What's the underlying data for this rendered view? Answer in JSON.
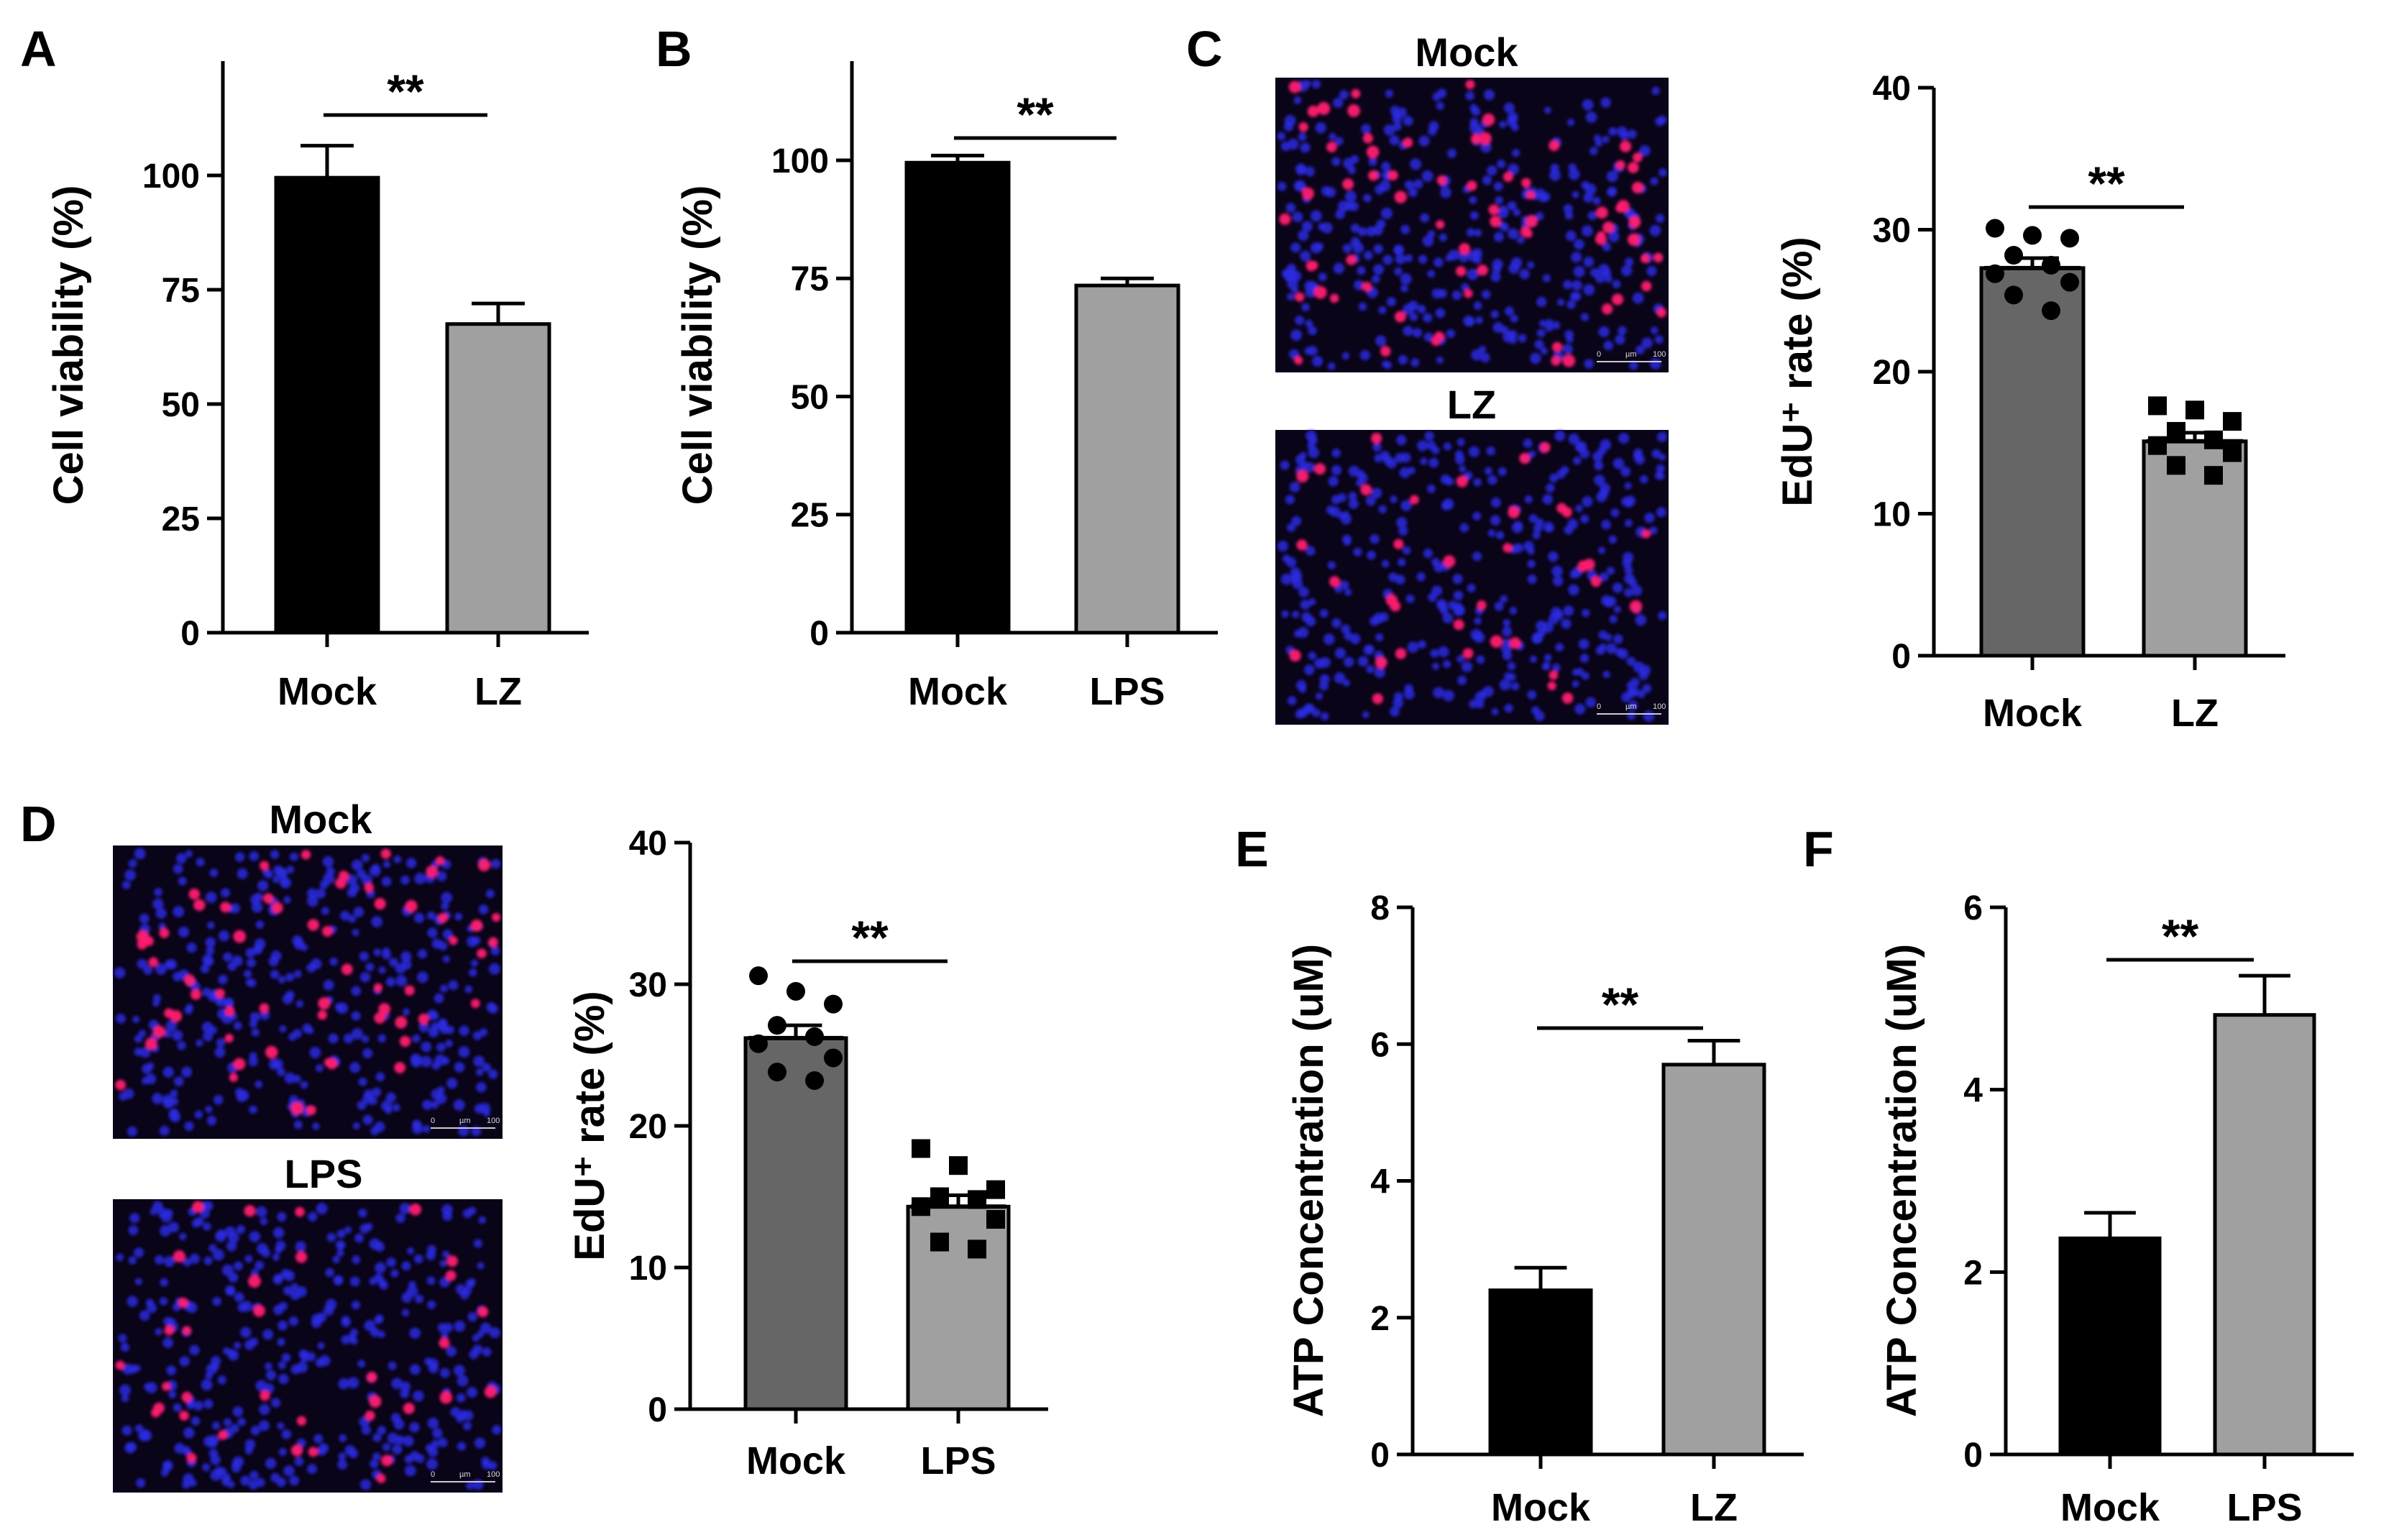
{
  "panels": {
    "A": "A",
    "B": "B",
    "C": "C",
    "D": "D",
    "E": "E",
    "F": "F"
  },
  "colors": {
    "black": "#000000",
    "dark_gray": "#666666",
    "light_gray": "#a0a0a0",
    "nucleus_blue": "#2a2ae0",
    "edu_red": "#ff2070"
  },
  "image_labels": {
    "C_top": "Mock",
    "C_bottom": "LZ",
    "D_top": "Mock",
    "D_bottom": "LPS",
    "scalebar": [
      "0",
      "µm",
      "100"
    ]
  },
  "chart_data": [
    {
      "id": "A",
      "type": "bar",
      "categories": [
        "Mock",
        "LZ"
      ],
      "values": [
        99.5,
        67.5
      ],
      "errors": [
        7,
        4.5
      ],
      "bar_colors": [
        "#000000",
        "#a0a0a0"
      ],
      "ylabel": "Cell viability (%)",
      "ylim": [
        0,
        125
      ],
      "yticks": [
        0,
        25,
        50,
        75,
        100
      ],
      "significance": "**"
    },
    {
      "id": "B",
      "type": "bar",
      "categories": [
        "Mock",
        "LPS"
      ],
      "values": [
        99.5,
        73.5
      ],
      "errors": [
        1.5,
        1.5
      ],
      "bar_colors": [
        "#000000",
        "#a0a0a0"
      ],
      "ylabel": "Cell viability (%)",
      "ylim": [
        0,
        121
      ],
      "yticks": [
        0,
        25,
        50,
        75,
        100
      ],
      "significance": "**"
    },
    {
      "id": "C",
      "type": "bar",
      "categories": [
        "Mock",
        "LZ"
      ],
      "values": [
        27.3,
        15.1
      ],
      "errors": [
        0.7,
        0.6
      ],
      "bar_colors": [
        "#666666",
        "#a0a0a0"
      ],
      "ylabel": "EdU⁺ rate (%)",
      "ylim": [
        0,
        40
      ],
      "yticks": [
        0,
        10,
        20,
        30,
        40
      ],
      "significance": "**",
      "points": [
        [
          30.1,
          29.6,
          29.4,
          28.2,
          27.5,
          26.9,
          26.3,
          25.4,
          24.3
        ],
        [
          17.6,
          17.3,
          16.5,
          15.8,
          15.2,
          14.8,
          14.3,
          13.4,
          12.7
        ]
      ]
    },
    {
      "id": "D",
      "type": "bar",
      "categories": [
        "Mock",
        "LPS"
      ],
      "values": [
        26.2,
        14.3
      ],
      "errors": [
        0.9,
        0.8
      ],
      "bar_colors": [
        "#666666",
        "#a0a0a0"
      ],
      "ylabel": "EdU⁺ rate (%)",
      "ylim": [
        0,
        40
      ],
      "yticks": [
        0,
        10,
        20,
        30,
        40
      ],
      "significance": "**",
      "points": [
        [
          30.6,
          29.5,
          28.6,
          27.1,
          26.3,
          25.8,
          24.8,
          23.8,
          23.2
        ],
        [
          18.4,
          17.2,
          15.5,
          15.0,
          14.8,
          14.3,
          13.4,
          11.8,
          11.3
        ]
      ]
    },
    {
      "id": "E",
      "type": "bar",
      "categories": [
        "Mock",
        "LZ"
      ],
      "values": [
        2.4,
        5.7
      ],
      "errors": [
        0.33,
        0.35
      ],
      "bar_colors": [
        "#000000",
        "#a0a0a0"
      ],
      "ylabel": "ATP Concentration (uM)",
      "ylim": [
        0,
        8
      ],
      "yticks": [
        0,
        2,
        4,
        6,
        8
      ],
      "significance": "**"
    },
    {
      "id": "F",
      "type": "bar",
      "categories": [
        "Mock",
        "LPS"
      ],
      "values": [
        2.37,
        4.82
      ],
      "errors": [
        0.28,
        0.43
      ],
      "bar_colors": [
        "#000000",
        "#a0a0a0"
      ],
      "ylabel": "ATP Concentration (uM)",
      "ylim": [
        0,
        6
      ],
      "yticks": [
        0,
        2,
        4,
        6
      ],
      "significance": "**"
    }
  ]
}
